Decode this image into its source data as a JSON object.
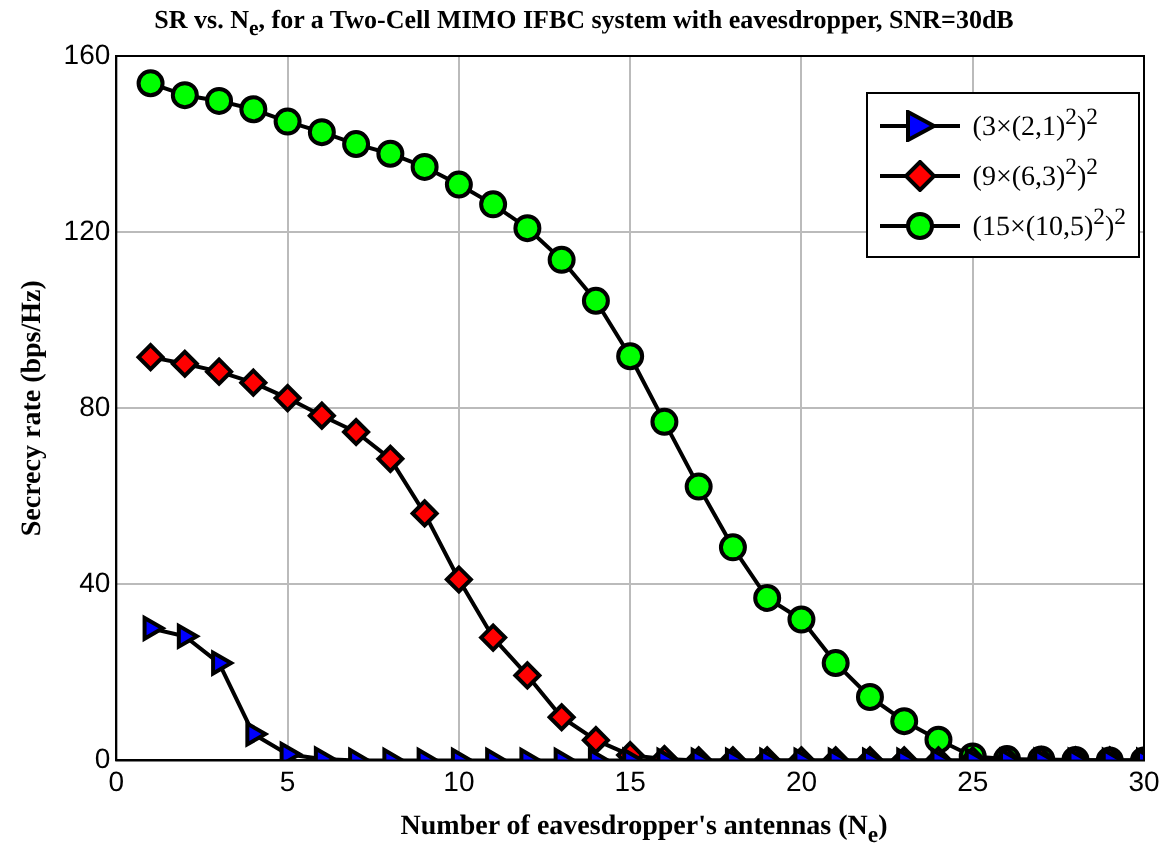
{
  "chart_data": {
    "type": "line",
    "title": "SR vs. N$_{e}$, for a Two-Cell MIMO IFBC system with eavesdropper, SNR=30dB",
    "xlabel": "Number of eavesdropper's antennas (N$_{e}$)",
    "ylabel": "Secrecy rate (bps/Hz)",
    "x": [
      1,
      2,
      3,
      4,
      5,
      6,
      7,
      8,
      9,
      10,
      11,
      12,
      13,
      14,
      15,
      16,
      17,
      18,
      19,
      20,
      21,
      22,
      23,
      24,
      25,
      26,
      27,
      28,
      29,
      30
    ],
    "series": [
      {
        "name": "(3×(2,1)$^{2}$)$^{2}$",
        "color": "#0000ff",
        "marker": "triangle",
        "values": [
          30,
          28.2,
          22.1,
          6,
          1.4,
          0.3,
          0,
          0,
          0,
          0,
          0,
          0,
          0,
          0,
          0,
          0,
          0,
          0,
          0,
          0,
          0,
          0,
          0,
          0,
          0,
          0,
          0,
          0,
          0,
          0
        ]
      },
      {
        "name": "(9×(6,3)$^{2}$)$^{2}$",
        "color": "#ff0000",
        "marker": "diamond",
        "values": [
          91.6,
          90.1,
          88.3,
          85.8,
          82.3,
          78.3,
          74.6,
          68.5,
          56.1,
          41.1,
          27.9,
          19.3,
          9.8,
          4.6,
          1.2,
          0.3,
          0,
          0,
          0,
          0,
          0,
          0,
          0,
          0,
          0,
          0,
          0,
          0,
          0,
          0
        ]
      },
      {
        "name": "(15×(10,5)$^{2}$)$^{2}$",
        "color": "#00ff00",
        "marker": "circle",
        "values": [
          153.8,
          151.1,
          149.8,
          147.9,
          145.1,
          142.7,
          140,
          137.8,
          134.8,
          130.8,
          126.3,
          120.9,
          113.7,
          104.4,
          91.8,
          76.9,
          62.2,
          48.4,
          36.9,
          32,
          22.1,
          14.4,
          8.9,
          4.7,
          0.9,
          0.3,
          0.2,
          0.1,
          0,
          0
        ]
      }
    ],
    "xlim": [
      0,
      30
    ],
    "xticks": [
      0,
      5,
      10,
      15,
      20,
      25,
      30
    ],
    "ylim": [
      0,
      160
    ],
    "yticks": [
      0,
      40,
      80,
      120,
      160
    ],
    "grid": true,
    "legend": "top right",
    "line_style": "solid"
  }
}
